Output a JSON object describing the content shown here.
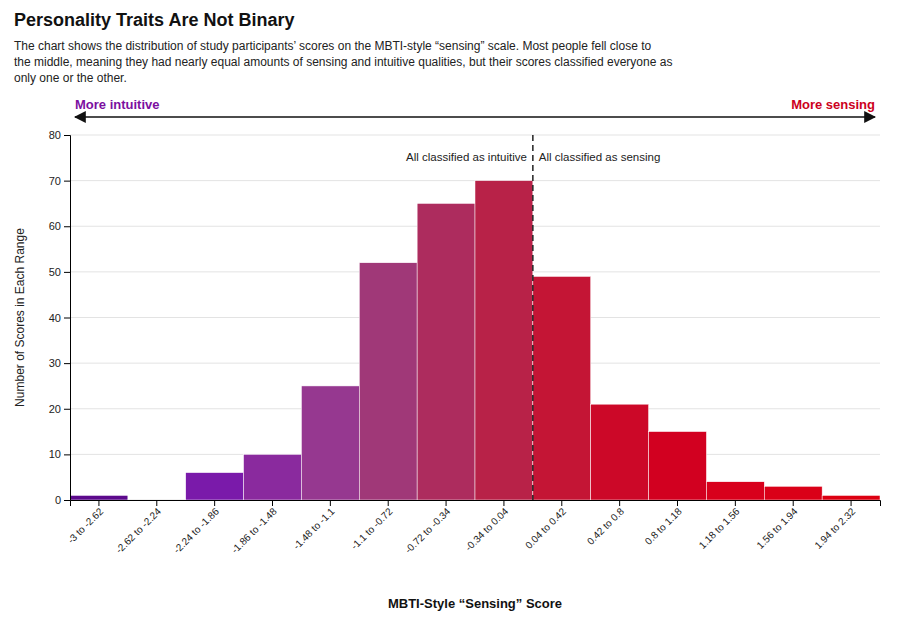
{
  "chart_data": {
    "type": "bar",
    "title": "Personality Traits Are Not Binary",
    "subtitle": "The chart shows the distribution of study participants’ scores on the MBTI-style “sensing” scale. Most people fell close to\nthe middle, meaning they had nearly equal amounts of sensing and intuitive qualities, but their scores classified everyone as\nonly one or the other.",
    "categories": [
      "-3 to -2.62",
      "-2.62 to -2.24",
      "-2.24 to -1.86",
      "-1.86 to -1.48",
      "-1.48 to -1.1",
      "-1.1 to -0.72",
      "-0.72 to -0.34",
      "-0.34 to 0.04",
      "0.04 to 0.42",
      "0.42 to 0.8",
      "0.8 to 1.18",
      "1.18 to 1.56",
      "1.56 to 1.94",
      "1.94 to 2.32"
    ],
    "values": [
      1,
      0,
      6,
      10,
      25,
      52,
      65,
      70,
      49,
      21,
      15,
      4,
      3,
      1
    ],
    "colors": [
      "#5c0a8c",
      "#6b0e9e",
      "#7a1aaa",
      "#8a2a9e",
      "#963890",
      "#a03878",
      "#ad2c5e",
      "#b82248",
      "#c41535",
      "#cc0828",
      "#d20020",
      "#d8001c",
      "#da0018",
      "#dd0012"
    ],
    "xlabel": "MBTI-Style “Sensing” Score",
    "ylabel": "Number of Scores in Each Range",
    "ylim": [
      0,
      80
    ],
    "yticks": [
      0,
      10,
      20,
      30,
      40,
      50,
      60,
      70,
      80
    ],
    "grid": true,
    "annotations": [
      {
        "text": "More intuitive",
        "color": "#7b0fa0"
      },
      {
        "text": "More sensing",
        "color": "#cc0020"
      },
      {
        "text": "All classified as intuitive"
      },
      {
        "text": "All classified as sensing"
      }
    ]
  }
}
